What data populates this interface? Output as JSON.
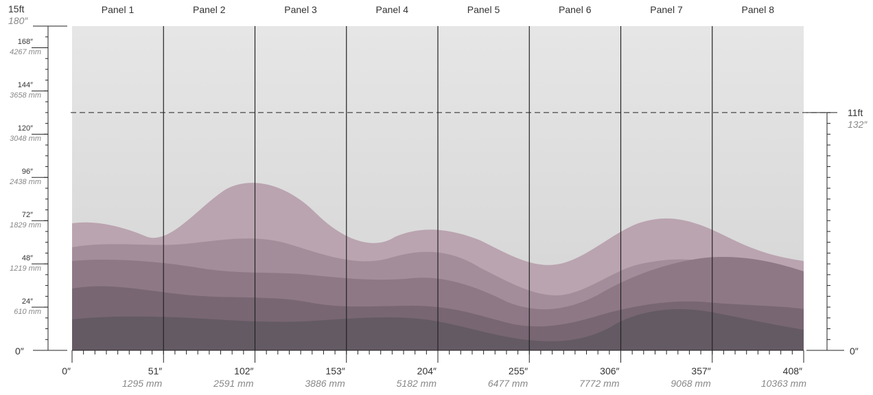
{
  "panels": [
    "Panel 1",
    "Panel 2",
    "Panel 3",
    "Panel 4",
    "Panel 5",
    "Panel 6",
    "Panel 7",
    "Panel 8"
  ],
  "left_scale": {
    "top_label_ft": "15ft",
    "top_label_in": "180″",
    "bottom_label": "0″",
    "marks": [
      {
        "value": 168,
        "inch": "168″",
        "mm": "4267 mm"
      },
      {
        "value": 144,
        "inch": "144″",
        "mm": "3658 mm"
      },
      {
        "value": 120,
        "inch": "120″",
        "mm": "3048 mm"
      },
      {
        "value": 96,
        "inch": "96″",
        "mm": "2438 mm"
      },
      {
        "value": 72,
        "inch": "72″",
        "mm": "1829 mm"
      },
      {
        "value": 48,
        "inch": "48″",
        "mm": "1219 mm"
      },
      {
        "value": 24,
        "inch": "24″",
        "mm": "610 mm"
      }
    ]
  },
  "right_scale": {
    "top_label_ft": "11ft",
    "top_label_in": "132″",
    "bottom_label": "0″"
  },
  "bottom_scale": [
    {
      "value": 0,
      "inch": "0″",
      "mm": ""
    },
    {
      "value": 51,
      "inch": "51″",
      "mm": "1295 mm"
    },
    {
      "value": 102,
      "inch": "102″",
      "mm": "2591 mm"
    },
    {
      "value": 153,
      "inch": "153″",
      "mm": "3886 mm"
    },
    {
      "value": 204,
      "inch": "204″",
      "mm": "5182 mm"
    },
    {
      "value": 255,
      "inch": "255″",
      "mm": "6477 mm"
    },
    {
      "value": 306,
      "inch": "306″",
      "mm": "7772 mm"
    },
    {
      "value": 357,
      "inch": "357″",
      "mm": "9068 mm"
    },
    {
      "value": 408,
      "inch": "408″",
      "mm": "10363 mm"
    }
  ],
  "colors": {
    "sky": "#d9d9d9",
    "band_light": "#b8a2ad",
    "band_mid": "#9a8391",
    "band_dark": "#7e6a76",
    "band_darkest": "#5f5560",
    "rule": "#222222"
  }
}
